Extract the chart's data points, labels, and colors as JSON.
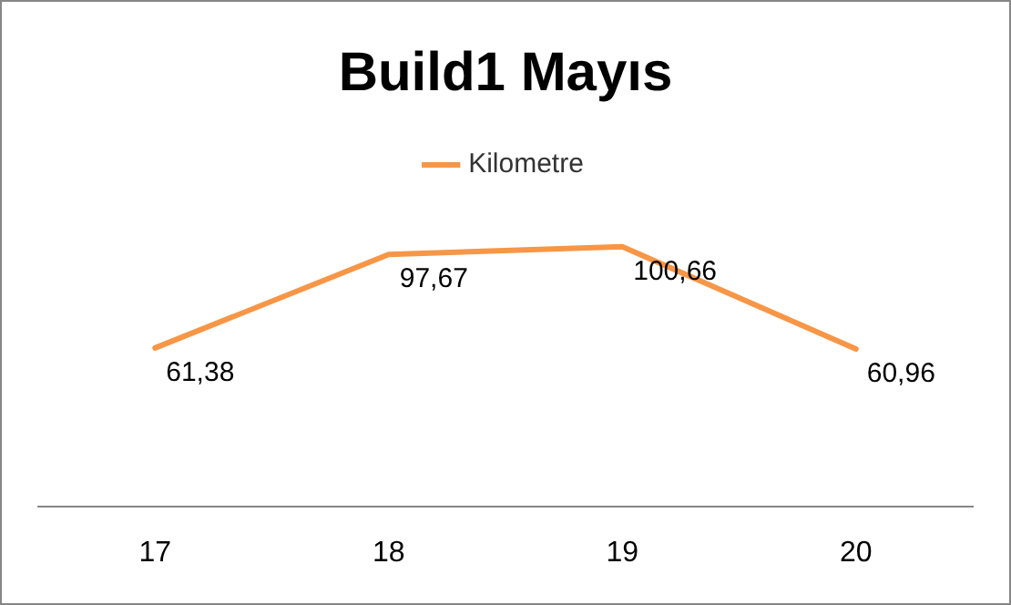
{
  "chart_data": {
    "type": "line",
    "title": "Build1 Mayıs",
    "categories": [
      "17",
      "18",
      "19",
      "20"
    ],
    "series": [
      {
        "name": "Kilometre",
        "color": "#f79646",
        "values": [
          61.38,
          97.67,
          100.66,
          60.96
        ],
        "value_labels": [
          "61,38",
          "97,67",
          "100,66",
          "60,96"
        ]
      }
    ],
    "tick_labels": "x",
    "legend": "top",
    "marker": "none",
    "grid": false,
    "line_style": "solid"
  }
}
